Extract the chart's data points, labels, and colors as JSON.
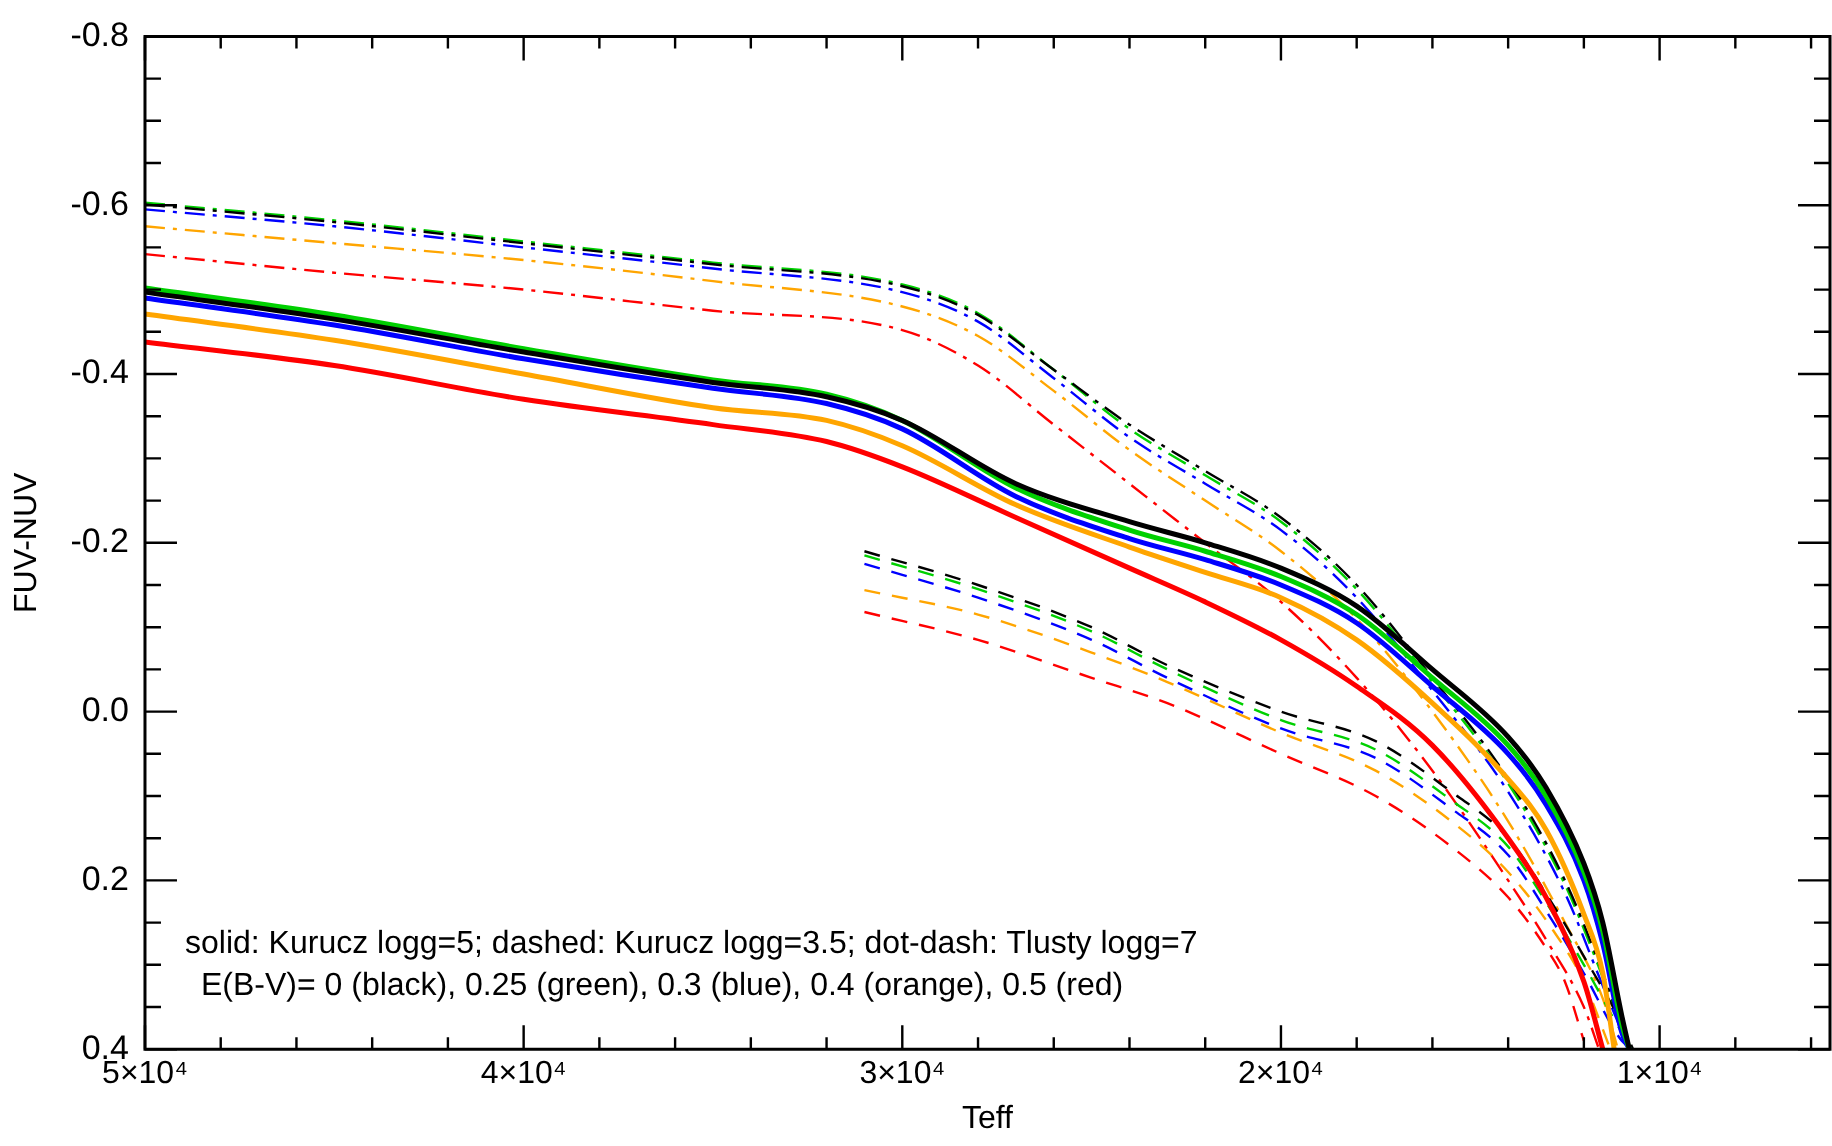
{
  "chart_data": {
    "type": "line",
    "xlabel": "Teff",
    "ylabel": "FUV-NUV",
    "xlim": [
      50000,
      5500
    ],
    "ylim": [
      0.4,
      -0.8
    ],
    "grid": false,
    "legend": false,
    "marker": "none",
    "xticks": [
      {
        "value": 50000,
        "label": "5×10⁴"
      },
      {
        "value": 48000,
        "label": null
      },
      {
        "value": 46000,
        "label": null
      },
      {
        "value": 44000,
        "label": null
      },
      {
        "value": 42000,
        "label": null
      },
      {
        "value": 40000,
        "label": "4×10⁴"
      },
      {
        "value": 38000,
        "label": null
      },
      {
        "value": 36000,
        "label": null
      },
      {
        "value": 34000,
        "label": null
      },
      {
        "value": 32000,
        "label": null
      },
      {
        "value": 30000,
        "label": "3×10⁴"
      },
      {
        "value": 28000,
        "label": null
      },
      {
        "value": 26000,
        "label": null
      },
      {
        "value": 24000,
        "label": null
      },
      {
        "value": 22000,
        "label": null
      },
      {
        "value": 20000,
        "label": "2×10⁴"
      },
      {
        "value": 18000,
        "label": null
      },
      {
        "value": 16000,
        "label": null
      },
      {
        "value": 14000,
        "label": null
      },
      {
        "value": 12000,
        "label": null
      },
      {
        "value": 10000,
        "label": "1×10⁴"
      },
      {
        "value": 8000,
        "label": null
      },
      {
        "value": 6000,
        "label": null
      }
    ],
    "yticks": [
      {
        "value": -0.8,
        "label": "-0.8"
      },
      {
        "value": -0.75,
        "label": null
      },
      {
        "value": -0.7,
        "label": null
      },
      {
        "value": -0.65,
        "label": null
      },
      {
        "value": -0.6,
        "label": "-0.6"
      },
      {
        "value": -0.55,
        "label": null
      },
      {
        "value": -0.5,
        "label": null
      },
      {
        "value": -0.45,
        "label": null
      },
      {
        "value": -0.4,
        "label": "-0.4"
      },
      {
        "value": -0.35,
        "label": null
      },
      {
        "value": -0.3,
        "label": null
      },
      {
        "value": -0.25,
        "label": null
      },
      {
        "value": -0.2,
        "label": "-0.2"
      },
      {
        "value": -0.15,
        "label": null
      },
      {
        "value": -0.1,
        "label": null
      },
      {
        "value": -0.05,
        "label": null
      },
      {
        "value": 0,
        "label": "0.0"
      },
      {
        "value": 0.05,
        "label": null
      },
      {
        "value": 0.1,
        "label": null
      },
      {
        "value": 0.15,
        "label": null
      },
      {
        "value": 0.2,
        "label": "0.2"
      },
      {
        "value": 0.25,
        "label": null
      },
      {
        "value": 0.3,
        "label": null
      },
      {
        "value": 0.35,
        "label": null
      },
      {
        "value": 0.4,
        "label": "0.4"
      }
    ],
    "annotations": [
      "solid: Kurucz logg=5; dashed: Kurucz logg=3.5; dot-dash: Tlusty logg=7",
      "E(B-V)= 0 (black), 0.25 (green), 0.3 (blue), 0.4 (orange), 0.5 (red)"
    ],
    "series": [
      {
        "color": "#000000",
        "line_style": "solid",
        "x": [
          50000,
          45000,
          40000,
          35000,
          32000,
          30000,
          27000,
          24000,
          22000,
          20000,
          18000,
          16000,
          14000,
          13000,
          12000,
          11500,
          11000,
          10800
        ],
        "values": [
          -0.497,
          -0.465,
          -0.426,
          -0.39,
          -0.373,
          -0.345,
          -0.27,
          -0.225,
          -0.2,
          -0.17,
          -0.125,
          -0.05,
          0.03,
          0.09,
          0.18,
          0.25,
          0.36,
          0.4
        ]
      },
      {
        "color": "#00d000",
        "line_style": "solid",
        "x": [
          50000,
          45000,
          40000,
          35000,
          32000,
          30000,
          27000,
          24000,
          22000,
          20000,
          18000,
          16000,
          14000,
          13000,
          12000,
          11500,
          11000,
          10800
        ],
        "values": [
          -0.502,
          -0.47,
          -0.43,
          -0.393,
          -0.376,
          -0.345,
          -0.265,
          -0.215,
          -0.19,
          -0.16,
          -0.115,
          -0.04,
          0.04,
          0.1,
          0.19,
          0.26,
          0.37,
          0.4
        ]
      },
      {
        "color": "#0000ff",
        "line_style": "solid",
        "x": [
          50000,
          45000,
          40000,
          35000,
          32000,
          30000,
          27000,
          24000,
          22000,
          20000,
          18000,
          16000,
          14000,
          13000,
          12000,
          11500,
          11000,
          10800
        ],
        "values": [
          -0.49,
          -0.458,
          -0.418,
          -0.383,
          -0.365,
          -0.335,
          -0.255,
          -0.205,
          -0.18,
          -0.15,
          -0.105,
          -0.03,
          0.05,
          0.11,
          0.2,
          0.275,
          0.38,
          0.4
        ]
      },
      {
        "color": "#ffa500",
        "line_style": "solid",
        "x": [
          50000,
          45000,
          40000,
          35000,
          32000,
          30000,
          27000,
          24000,
          22000,
          20000,
          18000,
          16000,
          14000,
          13000,
          12000,
          11500,
          11200
        ],
        "values": [
          -0.471,
          -0.44,
          -0.4,
          -0.36,
          -0.345,
          -0.315,
          -0.245,
          -0.195,
          -0.165,
          -0.135,
          -0.085,
          -0.01,
          0.08,
          0.14,
          0.24,
          0.31,
          0.4
        ]
      },
      {
        "color": "#ff0000",
        "line_style": "solid",
        "x": [
          50000,
          45000,
          40000,
          35000,
          32000,
          30000,
          27000,
          24000,
          22000,
          20000,
          18000,
          16000,
          14000,
          13000,
          12000,
          11500
        ],
        "values": [
          -0.438,
          -0.41,
          -0.37,
          -0.34,
          -0.32,
          -0.29,
          -0.23,
          -0.17,
          -0.13,
          -0.085,
          -0.03,
          0.04,
          0.15,
          0.22,
          0.32,
          0.4
        ]
      },
      {
        "color": "#000000",
        "line_style": "dashed",
        "x": [
          31000,
          28000,
          25000,
          23000,
          20000,
          17500,
          15500,
          14000,
          12800,
          12000,
          11000,
          10700
        ],
        "values": [
          -0.19,
          -0.15,
          -0.1,
          -0.055,
          0,
          0.035,
          0.095,
          0.15,
          0.23,
          0.29,
          0.37,
          0.4
        ]
      },
      {
        "color": "#00d000",
        "line_style": "dashed",
        "x": [
          31000,
          28000,
          25000,
          23000,
          20000,
          17500,
          15500,
          14000,
          12800,
          12000,
          11000,
          10700
        ],
        "values": [
          -0.185,
          -0.145,
          -0.095,
          -0.05,
          0.01,
          0.045,
          0.105,
          0.16,
          0.24,
          0.3,
          0.38,
          0.4
        ]
      },
      {
        "color": "#0000ff",
        "line_style": "dashed",
        "x": [
          31000,
          28000,
          25000,
          23000,
          20000,
          17500,
          15500,
          14000,
          12800,
          12000,
          11000,
          10700
        ],
        "values": [
          -0.175,
          -0.135,
          -0.085,
          -0.04,
          0.02,
          0.055,
          0.115,
          0.17,
          0.25,
          0.31,
          0.39,
          0.4
        ]
      },
      {
        "color": "#ffa500",
        "line_style": "dashed",
        "x": [
          31000,
          28000,
          25000,
          23000,
          20000,
          17500,
          15500,
          14000,
          12800,
          12000,
          11300
        ],
        "values": [
          -0.144,
          -0.115,
          -0.07,
          -0.035,
          0.025,
          0.07,
          0.13,
          0.19,
          0.26,
          0.32,
          0.4
        ]
      },
      {
        "color": "#ff0000",
        "line_style": "dashed",
        "x": [
          31000,
          28000,
          25000,
          23000,
          20000,
          17500,
          15500,
          14000,
          13000,
          12500,
          12000
        ],
        "values": [
          -0.118,
          -0.085,
          -0.04,
          -0.01,
          0.05,
          0.1,
          0.16,
          0.22,
          0.28,
          0.32,
          0.39
        ]
      },
      {
        "color": "#000000",
        "line_style": "dashdot",
        "x": [
          50000,
          45000,
          40000,
          35000,
          30000,
          28000,
          26000,
          24000,
          22000,
          20000,
          18000,
          16000,
          14000,
          12500,
          11500,
          10800
        ],
        "values": [
          -0.601,
          -0.58,
          -0.555,
          -0.53,
          -0.504,
          -0.47,
          -0.405,
          -0.34,
          -0.285,
          -0.23,
          -0.15,
          -0.04,
          0.08,
          0.2,
          0.31,
          0.4
        ]
      },
      {
        "color": "#00d000",
        "line_style": "dashdot",
        "x": [
          50000,
          45000,
          40000,
          35000,
          30000,
          28000,
          26000,
          24000,
          22000,
          20000,
          18000,
          16000,
          14000,
          12500,
          11500,
          10800
        ],
        "values": [
          -0.603,
          -0.582,
          -0.557,
          -0.532,
          -0.506,
          -0.472,
          -0.405,
          -0.335,
          -0.28,
          -0.225,
          -0.145,
          -0.035,
          0.085,
          0.205,
          0.315,
          0.4
        ]
      },
      {
        "color": "#0000ff",
        "line_style": "dashdot",
        "x": [
          50000,
          45000,
          40000,
          35000,
          30000,
          28000,
          26000,
          24000,
          22000,
          20000,
          18000,
          16000,
          14000,
          12500,
          11500,
          10800
        ],
        "values": [
          -0.595,
          -0.575,
          -0.55,
          -0.525,
          -0.497,
          -0.462,
          -0.395,
          -0.325,
          -0.27,
          -0.215,
          -0.135,
          -0.025,
          0.095,
          0.215,
          0.325,
          0.4
        ]
      },
      {
        "color": "#ffa500",
        "line_style": "dashdot",
        "x": [
          50000,
          45000,
          40000,
          35000,
          30000,
          28000,
          26000,
          24000,
          22000,
          20000,
          18000,
          16000,
          14000,
          12500,
          11500,
          11100
        ],
        "values": [
          -0.575,
          -0.555,
          -0.535,
          -0.51,
          -0.48,
          -0.445,
          -0.38,
          -0.31,
          -0.25,
          -0.19,
          -0.11,
          0,
          0.13,
          0.25,
          0.34,
          0.4
        ]
      },
      {
        "color": "#ff0000",
        "line_style": "dashdot",
        "x": [
          50000,
          45000,
          40000,
          35000,
          30000,
          28000,
          26000,
          24000,
          22000,
          20000,
          18000,
          16000,
          14000,
          13000,
          12000,
          11600
        ],
        "values": [
          -0.542,
          -0.52,
          -0.5,
          -0.475,
          -0.452,
          -0.41,
          -0.34,
          -0.27,
          -0.2,
          -0.13,
          -0.04,
          0.07,
          0.2,
          0.27,
          0.35,
          0.4
        ]
      }
    ]
  }
}
